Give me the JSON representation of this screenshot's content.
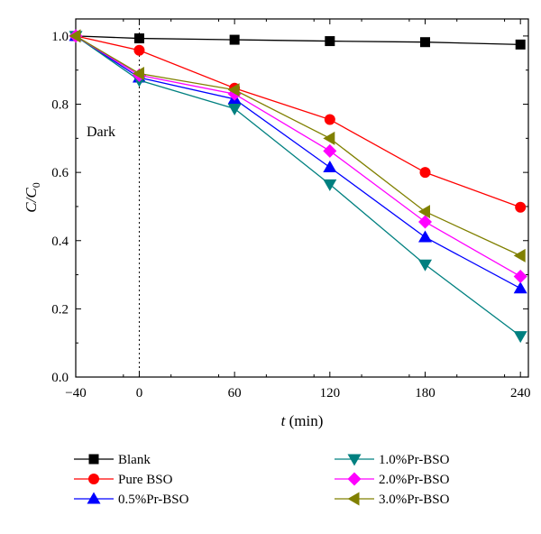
{
  "chart_data": {
    "type": "line",
    "xlabel_symbol": "t",
    "xlabel_unit": "(min)",
    "ylabel_main": "C/C",
    "ylabel_sub": "0",
    "xlim": [
      -40,
      245
    ],
    "ylim": [
      0,
      1.05
    ],
    "x_ticks": [
      -40,
      0,
      60,
      120,
      180,
      240
    ],
    "x_tick_labels": [
      "−40",
      "0",
      "60",
      "120",
      "180",
      "240"
    ],
    "y_ticks": [
      0,
      0.2,
      0.4,
      0.6,
      0.8,
      1.0
    ],
    "y_tick_labels": [
      "0.0",
      "0.2",
      "0.4",
      "0.6",
      "0.8",
      "1.0"
    ],
    "x": [
      -40,
      0,
      60,
      120,
      180,
      240
    ],
    "dark_line_x": 0,
    "annotation": "Dark",
    "grid": false,
    "legend_position": "bottom",
    "series": [
      {
        "name": "Blank",
        "marker": "square",
        "color": "#000000",
        "values": [
          1.0,
          0.993,
          0.989,
          0.985,
          0.982,
          0.975
        ]
      },
      {
        "name": "Pure BSO",
        "marker": "circle",
        "color": "#ff0000",
        "values": [
          1.0,
          0.958,
          0.847,
          0.755,
          0.6,
          0.498
        ]
      },
      {
        "name": "0.5%Pr-BSO",
        "marker": "triangle-up",
        "color": "#0000ff",
        "values": [
          1.0,
          0.878,
          0.815,
          0.615,
          0.41,
          0.26
        ]
      },
      {
        "name": "1.0%Pr-BSO",
        "marker": "triangle-down",
        "color": "#008080",
        "values": [
          1.0,
          0.87,
          0.787,
          0.565,
          0.33,
          0.12
        ]
      },
      {
        "name": "2.0%Pr-BSO",
        "marker": "diamond",
        "color": "#ff00ff",
        "values": [
          1.0,
          0.885,
          0.83,
          0.663,
          0.455,
          0.295
        ]
      },
      {
        "name": "3.0%Pr-BSO",
        "marker": "triangle-left",
        "color": "#808000",
        "values": [
          1.0,
          0.89,
          0.842,
          0.7,
          0.485,
          0.356
        ]
      }
    ]
  }
}
